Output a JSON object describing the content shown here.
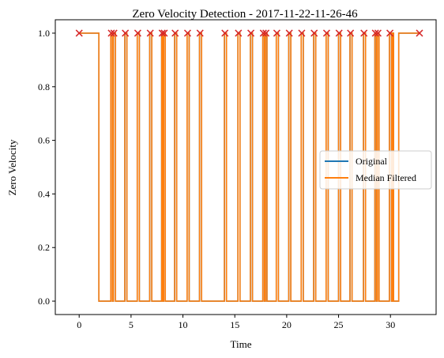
{
  "chart_data": {
    "type": "line",
    "title": "Zero Velocity Detection - 2017-11-22-11-26-46",
    "xlabel": "Time",
    "ylabel": "Zero Velocity",
    "xlim": [
      -2.3,
      34.4
    ],
    "ylim": [
      -0.05,
      1.05
    ],
    "xticks": [
      0,
      5,
      10,
      15,
      20,
      25,
      30
    ],
    "yticks": [
      0.0,
      0.2,
      0.4,
      0.6,
      0.8,
      1.0
    ],
    "ytick_labels": [
      "0.0",
      "0.2",
      "0.4",
      "0.6",
      "0.8",
      "1.0"
    ],
    "grid": false,
    "legend": {
      "placement": "center-right"
    },
    "series": [
      {
        "name": "Original",
        "color": "#1f77b4",
        "step": "post",
        "points": [
          [
            0,
            1
          ],
          [
            1.9,
            0
          ],
          [
            3.05,
            1
          ],
          [
            3.2,
            0
          ],
          [
            3.3,
            1
          ],
          [
            3.5,
            0
          ],
          [
            4.4,
            1
          ],
          [
            4.6,
            0
          ],
          [
            5.6,
            1
          ],
          [
            5.8,
            0
          ],
          [
            6.8,
            1
          ],
          [
            7.0,
            0
          ],
          [
            7.95,
            1
          ],
          [
            8.05,
            0
          ],
          [
            8.15,
            1
          ],
          [
            8.3,
            0
          ],
          [
            9.2,
            1
          ],
          [
            9.4,
            0
          ],
          [
            10.4,
            1
          ],
          [
            10.6,
            0
          ],
          [
            11.6,
            1
          ],
          [
            11.8,
            0
          ],
          [
            14.0,
            1
          ],
          [
            14.2,
            0
          ],
          [
            15.3,
            1
          ],
          [
            15.5,
            0
          ],
          [
            16.5,
            1
          ],
          [
            16.7,
            0
          ],
          [
            17.7,
            1
          ],
          [
            17.85,
            0
          ],
          [
            17.95,
            1
          ],
          [
            18.1,
            0
          ],
          [
            19.0,
            1
          ],
          [
            19.2,
            0
          ],
          [
            20.2,
            1
          ],
          [
            20.4,
            0
          ],
          [
            21.4,
            1
          ],
          [
            21.6,
            0
          ],
          [
            22.6,
            1
          ],
          [
            22.8,
            0
          ],
          [
            23.8,
            1
          ],
          [
            24.0,
            0
          ],
          [
            25.0,
            1
          ],
          [
            25.2,
            0
          ],
          [
            26.1,
            1
          ],
          [
            26.3,
            0
          ],
          [
            27.4,
            1
          ],
          [
            27.6,
            0
          ],
          [
            28.5,
            1
          ],
          [
            28.65,
            0
          ],
          [
            28.75,
            1
          ],
          [
            28.9,
            0
          ],
          [
            29.9,
            1
          ],
          [
            30.1,
            0
          ],
          [
            30.2,
            1
          ],
          [
            30.3,
            0
          ],
          [
            30.8,
            1
          ],
          [
            32.8,
            1
          ]
        ]
      },
      {
        "name": "Median Filtered",
        "color": "#ff7f0e",
        "step": "post",
        "points": [
          [
            0,
            1
          ],
          [
            1.9,
            0
          ],
          [
            3.05,
            1
          ],
          [
            3.2,
            0
          ],
          [
            3.3,
            1
          ],
          [
            3.5,
            0
          ],
          [
            4.4,
            1
          ],
          [
            4.6,
            0
          ],
          [
            5.6,
            1
          ],
          [
            5.8,
            0
          ],
          [
            6.8,
            1
          ],
          [
            7.0,
            0
          ],
          [
            7.95,
            1
          ],
          [
            8.05,
            0
          ],
          [
            8.15,
            1
          ],
          [
            8.3,
            0
          ],
          [
            9.2,
            1
          ],
          [
            9.4,
            0
          ],
          [
            10.4,
            1
          ],
          [
            10.6,
            0
          ],
          [
            11.6,
            1
          ],
          [
            11.8,
            0
          ],
          [
            14.0,
            1
          ],
          [
            14.2,
            0
          ],
          [
            15.3,
            1
          ],
          [
            15.5,
            0
          ],
          [
            16.5,
            1
          ],
          [
            16.7,
            0
          ],
          [
            17.7,
            1
          ],
          [
            17.85,
            0
          ],
          [
            17.95,
            1
          ],
          [
            18.1,
            0
          ],
          [
            19.0,
            1
          ],
          [
            19.2,
            0
          ],
          [
            20.2,
            1
          ],
          [
            20.4,
            0
          ],
          [
            21.4,
            1
          ],
          [
            21.6,
            0
          ],
          [
            22.6,
            1
          ],
          [
            22.8,
            0
          ],
          [
            23.8,
            1
          ],
          [
            24.0,
            0
          ],
          [
            25.0,
            1
          ],
          [
            25.2,
            0
          ],
          [
            26.1,
            1
          ],
          [
            26.3,
            0
          ],
          [
            27.4,
            1
          ],
          [
            27.6,
            0
          ],
          [
            28.5,
            1
          ],
          [
            28.65,
            0
          ],
          [
            28.75,
            1
          ],
          [
            28.9,
            0
          ],
          [
            29.9,
            1
          ],
          [
            30.1,
            0
          ],
          [
            30.2,
            1
          ],
          [
            30.3,
            0
          ],
          [
            30.8,
            1
          ],
          [
            32.8,
            1
          ]
        ]
      }
    ],
    "markers": {
      "symbol": "x",
      "color": "#d62728",
      "y": 1,
      "x": [
        0,
        3.1,
        3.35,
        4.45,
        5.65,
        6.85,
        8.0,
        8.2,
        9.25,
        10.45,
        11.65,
        14.05,
        15.35,
        16.55,
        17.75,
        18.0,
        19.05,
        20.25,
        21.45,
        22.65,
        23.85,
        25.05,
        26.15,
        27.45,
        28.55,
        28.8,
        29.95,
        32.8
      ]
    }
  }
}
